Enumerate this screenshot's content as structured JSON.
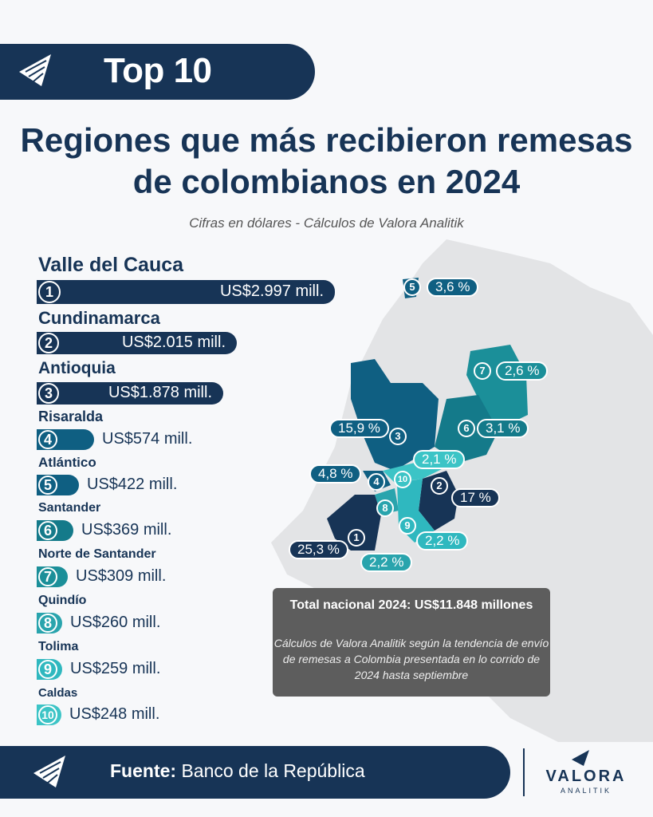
{
  "header": {
    "badge": "Top 10"
  },
  "title_line1": "Regiones que más recibieron remesas",
  "title_line2": "de colombianos en 2024",
  "subtitle": "Cifras en dólares - Cálculos de Valora Analitik",
  "chart_data": {
    "type": "bar",
    "title": "Regiones que más recibieron remesas de colombianos en 2024",
    "subtitle": "Cifras en dólares - Cálculos de Valora Analitik",
    "categories": [
      "Valle del Cauca",
      "Cundinamarca",
      "Antioquia",
      "Risaralda",
      "Atlántico",
      "Santander",
      "Norte de Santander",
      "Quindío",
      "Tolima",
      "Caldas"
    ],
    "ranks": [
      "1",
      "2",
      "3",
      "4",
      "5",
      "6",
      "7",
      "8",
      "9",
      "10"
    ],
    "values": [
      2997,
      2015,
      1878,
      574,
      422,
      369,
      309,
      260,
      259,
      248
    ],
    "value_labels": [
      "US$2.997 mill.",
      "US$2.015 mill.",
      "US$1.878 mill.",
      "US$574 mill.",
      "US$422 mill.",
      "US$369 mill.",
      "US$309 mill.",
      "US$260 mill.",
      "US$259 mill.",
      "US$248 mill."
    ],
    "shares": [
      "25,3 %",
      "17 %",
      "15,9 %",
      "4,8 %",
      "3,6 %",
      "3,1 %",
      "2,6 %",
      "2,2 %",
      "2,2 %",
      "2,1 %"
    ],
    "colors": [
      "#173456",
      "#173456",
      "#173456",
      "#0f5f82",
      "#0f5f82",
      "#147a8a",
      "#1b8f99",
      "#29a4ad",
      "#2fb8bf",
      "#3cc4c6"
    ]
  },
  "total": {
    "title": "Total nacional 2024: US$11.848 millones",
    "note": "Cálculos de Valora Analitik según la tendencia de envío de remesas a Colombia presentada en lo corrido de 2024 hasta septiembre"
  },
  "footer": {
    "source_label": "Fuente:",
    "source_value": "Banco de la República"
  },
  "brand": {
    "name": "VALORA",
    "sub": "ANALITIK"
  },
  "icons": {
    "logo": "valora-logo-icon"
  }
}
